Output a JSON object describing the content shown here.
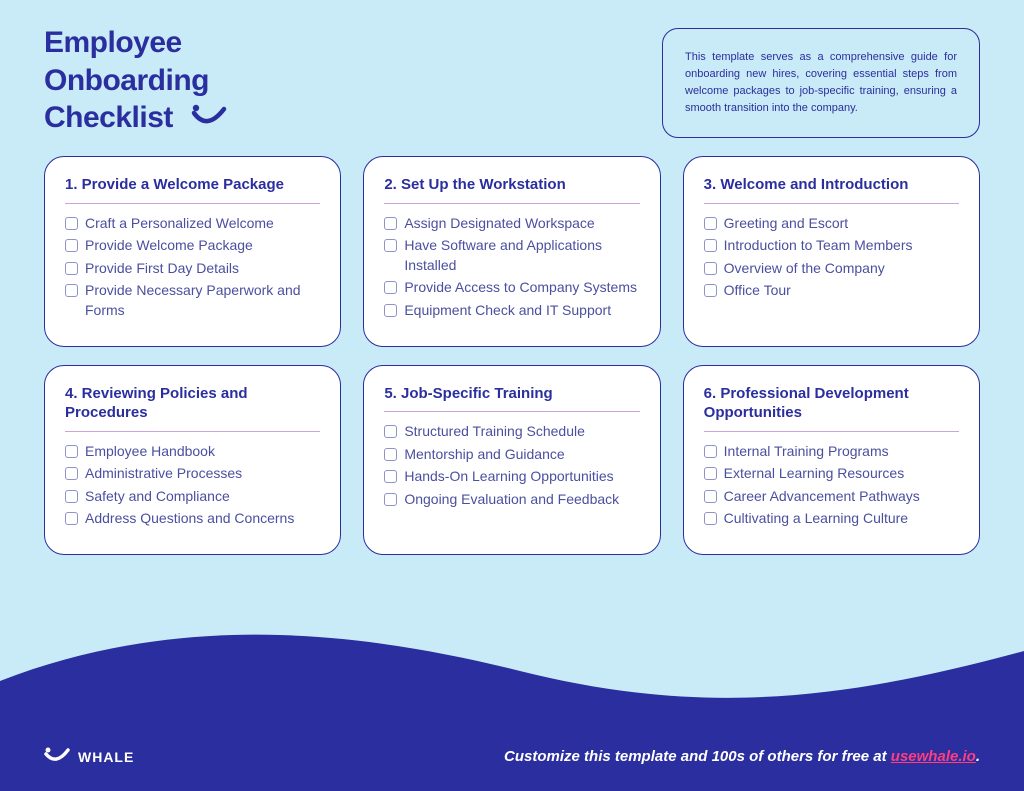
{
  "colors": {
    "background": "#c9eaf7",
    "card_bg": "#ffffff",
    "primary": "#2b2e9e",
    "text": "#4b4f9f",
    "divider": "#c9a6d9",
    "checkbox_border": "#8e93c9",
    "wave": "#2b2e9e",
    "footer_text": "#ffffff",
    "accent": "#ff3d7f"
  },
  "header": {
    "title_line1": "Employee",
    "title_line2": "Onboarding",
    "title_line3": "Checklist",
    "description": "This template serves as a comprehensive guide for onboarding new hires, covering essential steps from welcome packages to job-specific training, ensuring a smooth transition into the company."
  },
  "cards": [
    {
      "title": "1. Provide a Welcome Package",
      "items": [
        "Craft a Personalized Welcome",
        "Provide Welcome Package",
        "Provide First Day Details",
        "Provide Necessary Paperwork and Forms"
      ]
    },
    {
      "title": "2. Set Up the Workstation",
      "items": [
        "Assign Designated Workspace",
        "Have Software and Applications Installed",
        "Provide Access to Company Systems",
        "Equipment Check and IT Support"
      ]
    },
    {
      "title": "3. Welcome and Introduction",
      "items": [
        "Greeting and Escort",
        "Introduction to Team Members",
        "Overview of the Company",
        "Office Tour"
      ]
    },
    {
      "title": "4. Reviewing Policies and Procedures",
      "items": [
        "Employee Handbook",
        "Administrative Processes",
        "Safety and Compliance",
        "Address Questions and Concerns"
      ]
    },
    {
      "title": "5. Job-Specific Training",
      "items": [
        "Structured Training Schedule",
        "Mentorship and Guidance",
        "Hands-On Learning Opportunities",
        "Ongoing Evaluation and Feedback"
      ]
    },
    {
      "title": "6. Professional Development Opportunities",
      "items": [
        "Internal Training Programs",
        "External Learning Resources",
        "Career Advancement Pathways",
        "Cultivating a Learning Culture"
      ]
    }
  ],
  "footer": {
    "brand": "WHALE",
    "cta_prefix": "Customize this template and 100s of others for free at ",
    "cta_link": "usewhale.io",
    "cta_suffix": "."
  }
}
